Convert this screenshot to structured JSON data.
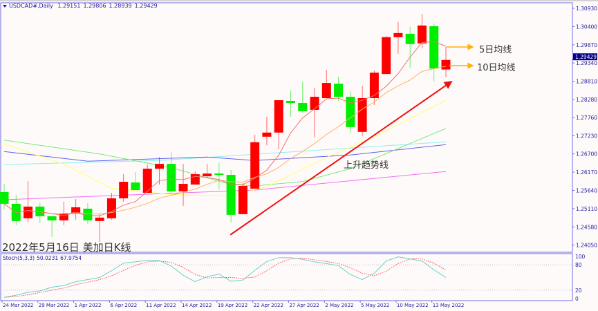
{
  "header": {
    "symbol": "USDCAD#,Daily",
    "open": "1.29151",
    "high": "1.29806",
    "low": "1.28939",
    "close": "1.29429"
  },
  "title": "2022年5月16日 美加日K线",
  "annotations": {
    "ma5": "5日均线",
    "ma10": "10日均线",
    "trendline": "上升趋势线"
  },
  "colors": {
    "bull": "#ff0000",
    "bear": "#00ee00",
    "ma5": "#f07070",
    "ma10": "#ffb060",
    "ma_yellow": "#ffff66",
    "ma_green": "#77e877",
    "ma_blue": "#6060f0",
    "ma_cyan": "#88f0f0",
    "ma_magenta": "#f070f0",
    "trend": "#ee1111",
    "arrow": "#ffb000",
    "axis": "#6b6be0",
    "stoch_k": "#66d0c8",
    "stoch_d": "#f05050",
    "price_tag": "#00008b"
  },
  "price_axis": {
    "ticks": [
      "1.30930",
      "1.30400",
      "1.29870",
      "1.29340",
      "1.28810",
      "1.28280",
      "1.27760",
      "1.27230",
      "1.26700",
      "1.26170",
      "1.25640",
      "1.25110",
      "1.24580",
      "1.24050"
    ],
    "current": "1.29429"
  },
  "stoch": {
    "label": "Stoch(5,3,3)",
    "k_value": "50.0231",
    "d_value": "67.9754",
    "levels": [
      "100",
      "80",
      "20",
      "0"
    ],
    "k": [
      3,
      8,
      15,
      18,
      27,
      31,
      40,
      45,
      50,
      66,
      84,
      87,
      91,
      90,
      77,
      55,
      40,
      52,
      58,
      41,
      44,
      67,
      88,
      97,
      97,
      93,
      87,
      83,
      78,
      57,
      45,
      60,
      89,
      99,
      94,
      89,
      68,
      50.0231
    ],
    "d": [
      3,
      5,
      9,
      14,
      20,
      25,
      33,
      39,
      45,
      54,
      67,
      79,
      87,
      89,
      86,
      74,
      57,
      49,
      50,
      50,
      48,
      51,
      66,
      84,
      94,
      96,
      92,
      88,
      83,
      73,
      60,
      54,
      65,
      83,
      94,
      94,
      84,
      67.9754
    ]
  },
  "time_axis": [
    "24 Mar 2022",
    "29 Mar 2022",
    "1 Apr 2022",
    "6 Apr 2022",
    "11 Apr 2022",
    "14 Apr 2022",
    "19 Apr 2022",
    "22 Apr 2022",
    "27 Apr 2022",
    "2 May 2022",
    "5 May 2022",
    "10 May 2022",
    "13 May 2022"
  ],
  "chart_data": {
    "type": "candlestick",
    "ohlc": [
      [
        1.2559,
        1.2583,
        1.2509,
        1.2525
      ],
      [
        1.2525,
        1.2551,
        1.2463,
        1.2475
      ],
      [
        1.2483,
        1.2591,
        1.2471,
        1.2517
      ],
      [
        1.2517,
        1.2529,
        1.2469,
        1.2489
      ],
      [
        1.2489,
        1.2489,
        1.2429,
        1.2477
      ],
      [
        1.2477,
        1.2531,
        1.2463,
        1.2497
      ],
      [
        1.2497,
        1.2539,
        1.2479,
        1.2515
      ],
      [
        1.2511,
        1.2527,
        1.2467,
        1.2477
      ],
      [
        1.2475,
        1.2497,
        1.2415,
        1.2485
      ],
      [
        1.2483,
        1.2557,
        1.2479,
        1.2541
      ],
      [
        1.2541,
        1.2611,
        1.2531,
        1.2589
      ],
      [
        1.2587,
        1.2617,
        1.2565,
        1.2565
      ],
      [
        1.2557,
        1.2639,
        1.2557,
        1.2627
      ],
      [
        1.2627,
        1.2661,
        1.2581,
        1.2641
      ],
      [
        1.2641,
        1.2675,
        1.2553,
        1.2561
      ],
      [
        1.2561,
        1.2641,
        1.2519,
        1.2583
      ],
      [
        1.2581,
        1.2619,
        1.2581,
        1.2611
      ],
      [
        1.2605,
        1.2641,
        1.2601,
        1.2613
      ],
      [
        1.2613,
        1.2645,
        1.2567,
        1.2609
      ],
      [
        1.2609,
        1.2623,
        1.2471,
        1.2493
      ],
      [
        1.2495,
        1.2585,
        1.2495,
        1.2577
      ],
      [
        1.2569,
        1.2726,
        1.2569,
        1.2704
      ],
      [
        1.272,
        1.2778,
        1.2695,
        1.2732
      ],
      [
        1.2732,
        1.2826,
        1.2683,
        1.2826
      ],
      [
        1.2824,
        1.2854,
        1.2778,
        1.2818
      ],
      [
        1.2818,
        1.288,
        1.279,
        1.2794
      ],
      [
        1.2798,
        1.2862,
        1.2718,
        1.2836
      ],
      [
        1.2832,
        1.2914,
        1.2832,
        1.2876
      ],
      [
        1.2874,
        1.2894,
        1.2824,
        1.2836
      ],
      [
        1.2836,
        1.2852,
        1.273,
        1.2748
      ],
      [
        1.2734,
        1.2868,
        1.2722,
        1.2832
      ],
      [
        1.2832,
        1.2912,
        1.2812,
        1.2906
      ],
      [
        1.2902,
        1.3013,
        1.2902,
        1.3009
      ],
      [
        1.3009,
        1.3053,
        1.2961,
        1.3021
      ],
      [
        1.3019,
        1.3039,
        1.292,
        1.2989
      ],
      [
        1.2991,
        1.3077,
        1.2977,
        1.3043
      ],
      [
        1.3041,
        1.3049,
        1.288,
        1.2918
      ],
      [
        1.29151,
        1.29806,
        1.28939,
        1.29429
      ]
    ],
    "ma_periods_computed": [
      5,
      10
    ],
    "long_mas": {
      "yellow": [
        [
          0,
          1.2699
        ],
        [
          5,
          1.264
        ],
        [
          9,
          1.257
        ],
        [
          14,
          1.2552
        ],
        [
          19,
          1.2548
        ],
        [
          22,
          1.2575
        ],
        [
          27,
          1.266
        ],
        [
          31,
          1.272
        ],
        [
          37,
          1.2826
        ]
      ],
      "green": [
        [
          0,
          1.271
        ],
        [
          8,
          1.267
        ],
        [
          14,
          1.263
        ],
        [
          19,
          1.2581
        ],
        [
          21,
          1.2577
        ],
        [
          25,
          1.259
        ],
        [
          29,
          1.2627
        ],
        [
          35,
          1.2715
        ],
        [
          37,
          1.2744
        ]
      ],
      "blue": [
        [
          0,
          1.2677
        ],
        [
          7,
          1.2649
        ],
        [
          17,
          1.2661
        ],
        [
          21,
          1.2651
        ],
        [
          29,
          1.2667
        ],
        [
          37,
          1.2697
        ]
      ],
      "cyan": [
        [
          0,
          1.2639
        ],
        [
          13,
          1.2651
        ],
        [
          21,
          1.2669
        ],
        [
          37,
          1.2705
        ]
      ],
      "magenta": [
        [
          0,
          1.2537
        ],
        [
          21,
          1.2565
        ],
        [
          37,
          1.2619
        ]
      ]
    },
    "trendline": [
      [
        19,
        1.2435
      ],
      [
        37,
        1.288
      ]
    ],
    "ylim": [
      1.2379,
      1.3106
    ]
  }
}
